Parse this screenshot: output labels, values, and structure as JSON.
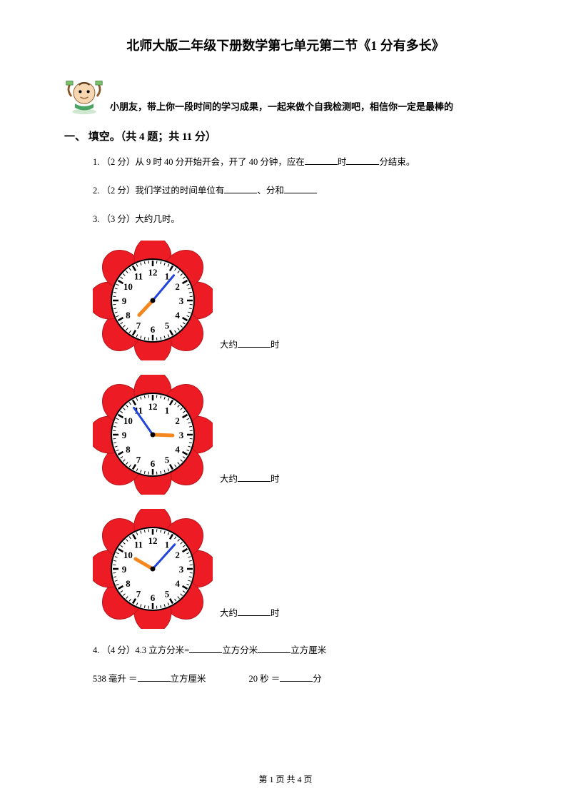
{
  "title": "北师大版二年级下册数学第七单元第二节《1 分有多长》",
  "intro": "小朋友，带上你一段时间的学习成果，一起来做个自我检测吧，相信你一定是最棒的",
  "section": "一、 填空。（共 4 题；共 11 分）",
  "q1": "1.  （2 分）从 9 时 40 分开始开会，开了 40 分钟，应在",
  "q1_mid": "时",
  "q1_end": "分结束。",
  "q2": "2.  （2 分）我们学过的时间单位有",
  "q2_mid": "、分和",
  "q3": "3.  （3 分）大约几时。",
  "clock_label_prefix": "大约",
  "clock_label_suffix": "时",
  "q4a": "4.  （4 分）4.3 立方分米=",
  "q4a_mid": "立方分米",
  "q4a_end": "立方厘米",
  "q4b_1": "538 毫升 ＝",
  "q4b_2": "立方厘米",
  "q4b_3": "20 秒 ＝",
  "q4b_4": "分",
  "footer": "第 1 页 共 4 页",
  "clocks": [
    {
      "hourAngle": 223,
      "minuteAngle": 40
    },
    {
      "hourAngle": 92,
      "minuteAngle": 325
    },
    {
      "hourAngle": 300,
      "minuteAngle": 42
    }
  ],
  "colors": {
    "petal": "#ed1c24",
    "petal_dark": "#b5151b",
    "face": "#ffffff",
    "tick": "#000000",
    "hour_hand": "#f5871f",
    "minute_hand": "#2244dd",
    "mascot_skin": "#f7d7b1",
    "mascot_shirt": "#4aa564",
    "mascot_bill": "#7bc26b"
  }
}
